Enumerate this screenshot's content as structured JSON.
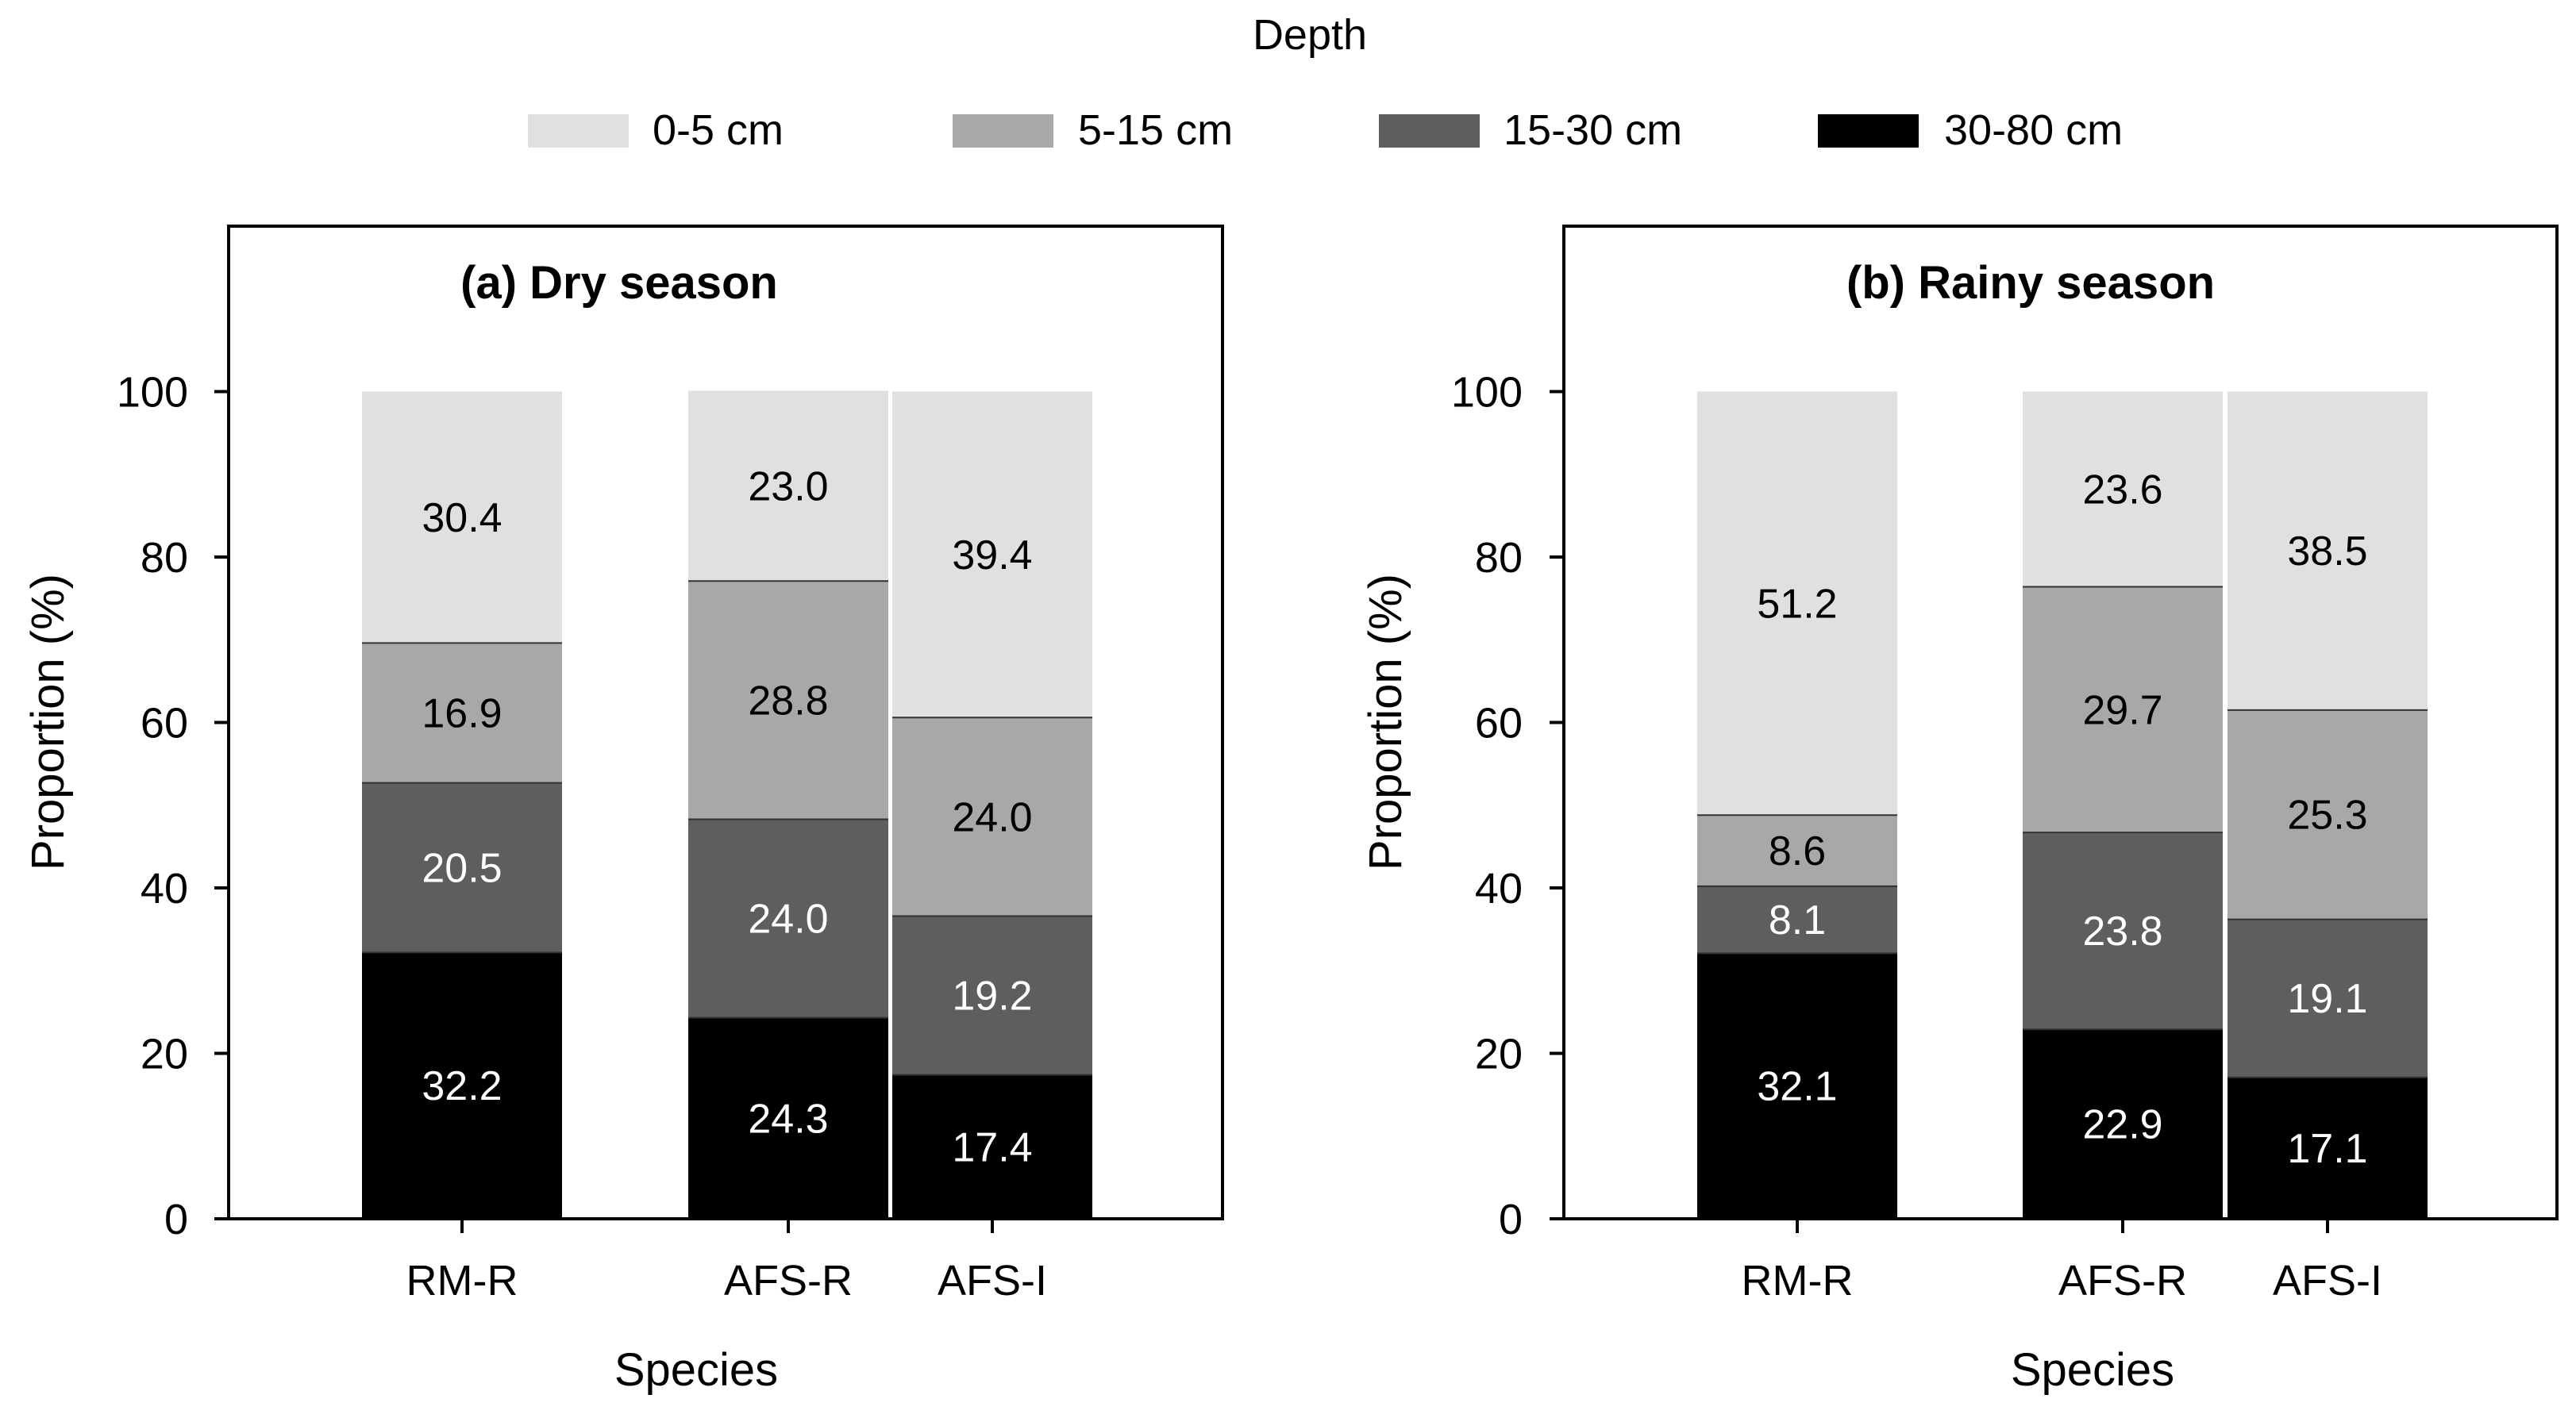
{
  "legend": {
    "title": "Depth",
    "items": [
      {
        "label": "0-5 cm",
        "color": "#e0e0e0"
      },
      {
        "label": "5-15 cm",
        "color": "#a8a8a8"
      },
      {
        "label": "15-30 cm",
        "color": "#5e5e5e"
      },
      {
        "label": "30-80 cm",
        "color": "#000000"
      }
    ]
  },
  "chart_data": [
    {
      "type": "bar",
      "stacked": true,
      "title": "(a) Dry season",
      "xlabel": "Species",
      "ylabel": "Proportion (%)",
      "ylim": [
        0,
        120
      ],
      "yticks": [
        0,
        20,
        40,
        60,
        80,
        100
      ],
      "categories": [
        "RM-R",
        "AFS-R",
        "AFS-I"
      ],
      "series": [
        {
          "name": "30-80 cm",
          "values": [
            32.2,
            24.3,
            17.4
          ],
          "labels": [
            "32.2",
            "24.3",
            "17.4"
          ]
        },
        {
          "name": "15-30 cm",
          "values": [
            20.5,
            24.0,
            19.2
          ],
          "labels": [
            "20.5",
            "24.0",
            "19.2"
          ]
        },
        {
          "name": "5-15 cm",
          "values": [
            16.9,
            28.8,
            24.0
          ],
          "labels": [
            "16.9",
            "28.8",
            "24.0"
          ]
        },
        {
          "name": "0-5 cm",
          "values": [
            30.4,
            23.0,
            39.4
          ],
          "labels": [
            "30.4",
            "23.0",
            "39.4"
          ]
        }
      ]
    },
    {
      "type": "bar",
      "stacked": true,
      "title": "(b) Rainy season",
      "xlabel": "Species",
      "ylabel": "Proportion (%)",
      "ylim": [
        0,
        120
      ],
      "yticks": [
        0,
        20,
        40,
        60,
        80,
        100
      ],
      "categories": [
        "RM-R",
        "AFS-R",
        "AFS-I"
      ],
      "series": [
        {
          "name": "30-80 cm",
          "values": [
            32.1,
            22.9,
            17.1
          ],
          "labels": [
            "32.1",
            "22.9",
            "17.1"
          ]
        },
        {
          "name": "15-30 cm",
          "values": [
            8.1,
            23.8,
            19.1
          ],
          "labels": [
            "8.1",
            "23.8",
            "19.1"
          ]
        },
        {
          "name": "5-15 cm",
          "values": [
            8.6,
            29.7,
            25.3
          ],
          "labels": [
            "8.6",
            "29.7",
            "25.3"
          ]
        },
        {
          "name": "0-5 cm",
          "values": [
            51.2,
            23.6,
            38.5
          ],
          "labels": [
            "51.2",
            "23.6",
            "38.5"
          ]
        }
      ]
    }
  ]
}
